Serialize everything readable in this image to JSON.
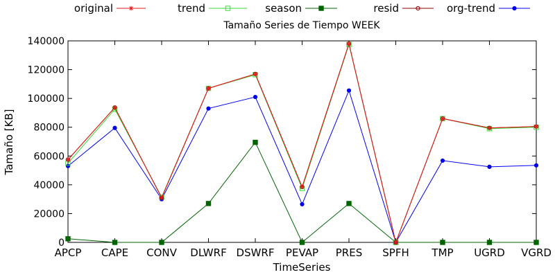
{
  "chart_data": {
    "type": "line",
    "title": "Tamaño Series de Tiempo WEEK",
    "xlabel": "TimeSeries",
    "ylabel": "Tamaño [KB]",
    "ylim": [
      0,
      140000
    ],
    "yticks": [
      "0",
      "20000",
      "40000",
      "60000",
      "80000",
      "100000",
      "120000",
      "140000"
    ],
    "categories": [
      "APCP",
      "CAPE",
      "CONV",
      "DLWRF",
      "DSWRF",
      "PEVAP",
      "PRES",
      "SPFH",
      "TMP",
      "UGRD",
      "VGRD"
    ],
    "grid": false,
    "legend_position": "top",
    "series": [
      {
        "name": "original",
        "color": "#e31a1c",
        "marker": "star",
        "values": [
          57500,
          93700,
          31000,
          107000,
          117000,
          38500,
          138000,
          0,
          86000,
          79500,
          80500
        ]
      },
      {
        "name": "trend",
        "color": "#33dd33",
        "marker": "open-square",
        "values": [
          55000,
          92500,
          31500,
          107000,
          116500,
          37500,
          137500,
          0,
          86000,
          79000,
          80000
        ]
      },
      {
        "name": "season",
        "color": "#006400",
        "marker": "filled-square",
        "values": [
          2500,
          0,
          0,
          27000,
          69500,
          0,
          27000,
          0,
          0,
          0,
          0
        ]
      },
      {
        "name": "resid",
        "color": "#8b0000",
        "marker": "open-circle",
        "values": [
          57500,
          93700,
          31000,
          107000,
          117000,
          38500,
          138000,
          0,
          86000,
          79500,
          80500
        ]
      },
      {
        "name": "org-trend",
        "color": "#0000ee",
        "marker": "filled-circle",
        "values": [
          53000,
          79500,
          30000,
          93000,
          101000,
          26500,
          105500,
          0,
          56800,
          52500,
          53500
        ]
      }
    ]
  }
}
